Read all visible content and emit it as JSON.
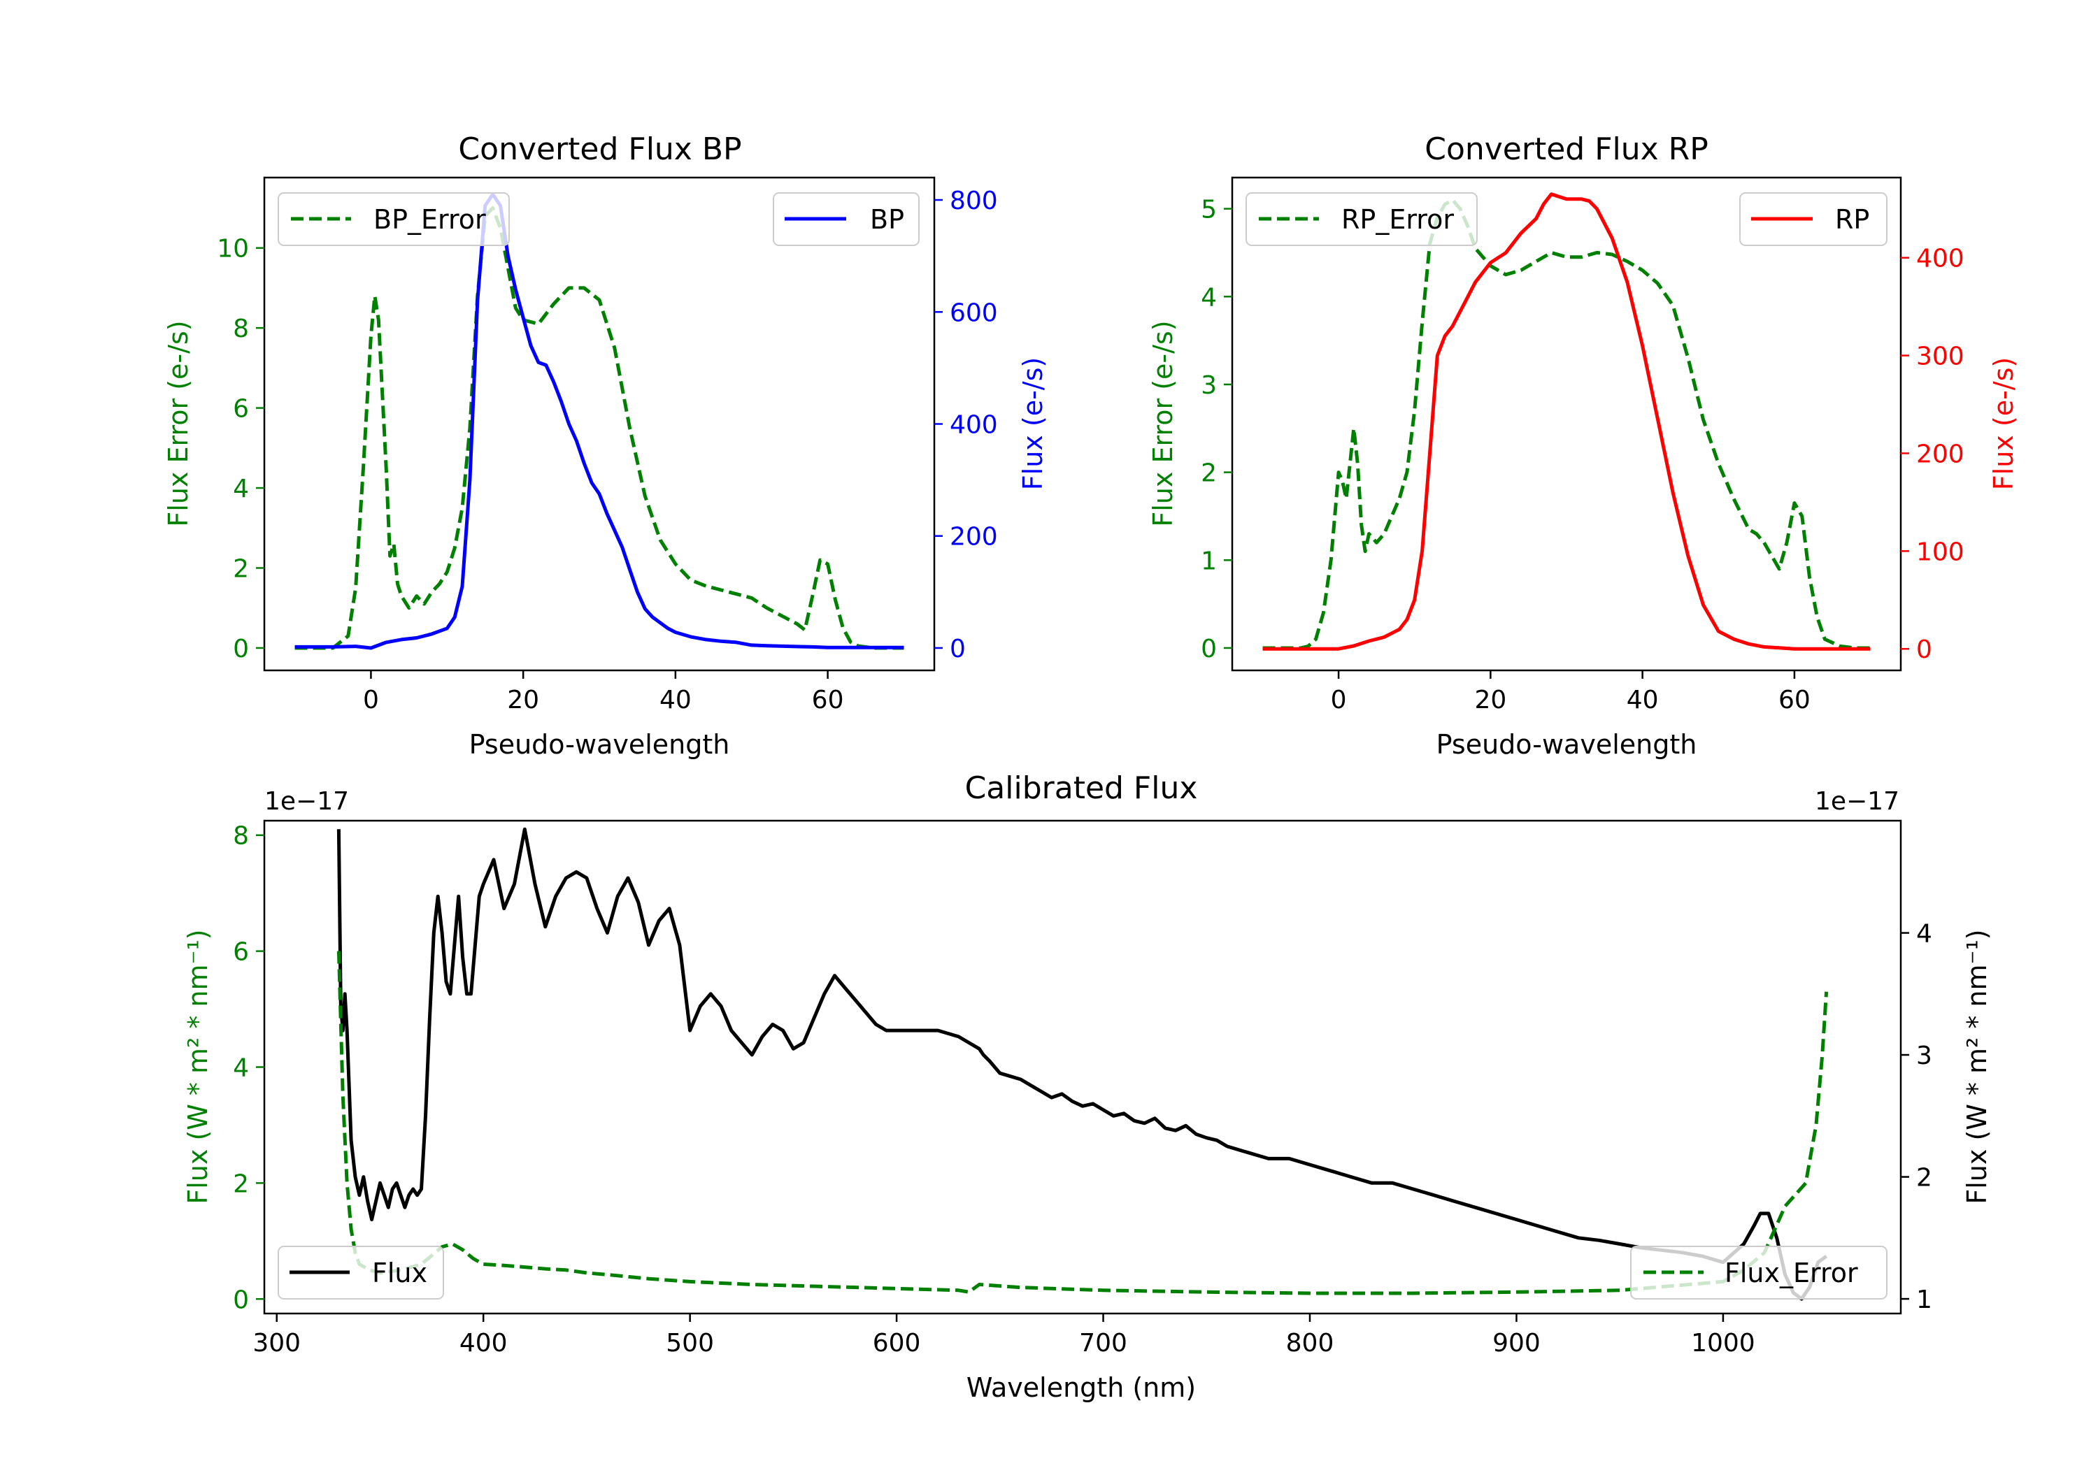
{
  "chart_data": [
    {
      "type": "line",
      "title": "Converted Flux BP",
      "xlabel": "Pseudo-wavelength",
      "xlim": [
        -14,
        74
      ],
      "xticks": [
        0,
        20,
        40,
        60
      ],
      "left_axis": {
        "label": "Flux Error (e-/s)",
        "color": "#008000",
        "ylim": [
          -0.56,
          11.76
        ],
        "ticks": [
          0,
          2,
          4,
          6,
          8,
          10
        ]
      },
      "right_axis": {
        "label": "Flux (e-/s)",
        "color": "#0000ff",
        "ylim": [
          -40,
          840
        ],
        "ticks": [
          0,
          200,
          400,
          600,
          800
        ]
      },
      "series": [
        {
          "name": "BP_Error",
          "axis": "left",
          "color": "#008000",
          "style": "dashed",
          "x": [
            -10,
            -5,
            -3,
            -2,
            -1,
            0,
            0.5,
            1,
            2,
            2.5,
            3,
            3.5,
            4,
            5,
            6,
            7,
            8,
            9,
            10,
            11,
            12,
            13,
            14,
            15,
            16,
            17,
            18,
            19,
            20,
            22,
            24,
            26,
            28,
            30,
            32,
            34,
            36,
            38,
            40,
            42,
            44,
            46,
            48,
            50,
            52,
            54,
            56,
            57,
            58,
            59,
            60,
            61,
            62,
            63,
            64,
            66,
            68,
            70
          ],
          "values": [
            0,
            0,
            0.3,
            1.5,
            4.5,
            7.8,
            8.8,
            8.2,
            4.5,
            2.3,
            2.6,
            1.6,
            1.3,
            1.0,
            1.3,
            1.1,
            1.4,
            1.6,
            1.9,
            2.5,
            3.5,
            5.5,
            8.8,
            10.8,
            11.0,
            10.5,
            9.5,
            8.5,
            8.2,
            8.1,
            8.6,
            9.0,
            9.0,
            8.7,
            7.5,
            5.5,
            3.8,
            2.7,
            2.1,
            1.7,
            1.55,
            1.45,
            1.35,
            1.25,
            1.0,
            0.8,
            0.6,
            0.45,
            1.3,
            2.2,
            2.1,
            1.2,
            0.5,
            0.15,
            0.05,
            0,
            0,
            0
          ]
        },
        {
          "name": "BP",
          "axis": "right",
          "color": "#0000ff",
          "style": "solid",
          "x": [
            -10,
            -5,
            -2,
            0,
            2,
            4,
            6,
            8,
            10,
            11,
            12,
            13,
            14,
            15,
            16,
            17,
            18,
            19,
            20,
            21,
            22,
            23,
            24,
            25,
            26,
            27,
            28,
            29,
            30,
            31,
            32,
            33,
            34,
            35,
            36,
            37,
            38,
            39,
            40,
            42,
            44,
            46,
            48,
            50,
            52,
            55,
            58,
            60,
            62,
            65,
            68,
            70
          ],
          "values": [
            2,
            2,
            3,
            0,
            10,
            15,
            18,
            25,
            35,
            55,
            110,
            300,
            620,
            790,
            810,
            790,
            700,
            640,
            590,
            540,
            510,
            505,
            475,
            440,
            400,
            370,
            330,
            295,
            275,
            240,
            210,
            180,
            140,
            100,
            70,
            55,
            45,
            35,
            28,
            20,
            15,
            12,
            10,
            5,
            4,
            3,
            2,
            1,
            1,
            1,
            1,
            1
          ]
        }
      ],
      "legends": [
        {
          "position": "upper left",
          "entries": [
            "BP_Error"
          ]
        },
        {
          "position": "upper right",
          "entries": [
            "BP"
          ]
        }
      ]
    },
    {
      "type": "line",
      "title": "Converted Flux RP",
      "xlabel": "Pseudo-wavelength",
      "xlim": [
        -14,
        74
      ],
      "xticks": [
        0,
        20,
        40,
        60
      ],
      "left_axis": {
        "label": "Flux Error (e-/s)",
        "color": "#008000",
        "ylim": [
          -0.255,
          5.355
        ],
        "ticks": [
          0,
          1,
          2,
          3,
          4,
          5
        ]
      },
      "right_axis": {
        "label": "Flux (e-/s)",
        "color": "#ff0000",
        "ylim": [
          -22,
          482
        ],
        "ticks": [
          0,
          100,
          200,
          300,
          400
        ]
      },
      "series": [
        {
          "name": "RP_Error",
          "axis": "left",
          "color": "#008000",
          "style": "dashed",
          "x": [
            -10,
            -5,
            -4,
            -3,
            -2,
            -1,
            0,
            0.5,
            1,
            1.5,
            2,
            2.5,
            3,
            3.5,
            4,
            5,
            6,
            7,
            8,
            9,
            10,
            11,
            12,
            13,
            14,
            15,
            16,
            17,
            18,
            20,
            22,
            24,
            26,
            28,
            30,
            32,
            34,
            36,
            38,
            40,
            42,
            44,
            46,
            48,
            50,
            52,
            54,
            55,
            56,
            57,
            58,
            59,
            60,
            61,
            62,
            63,
            64,
            66,
            68,
            70
          ],
          "values": [
            0,
            0,
            0.02,
            0.1,
            0.4,
            1.0,
            2.0,
            1.9,
            1.7,
            2.1,
            2.5,
            2.1,
            1.4,
            1.1,
            1.3,
            1.2,
            1.3,
            1.5,
            1.7,
            2.0,
            2.7,
            3.7,
            4.6,
            4.9,
            5.05,
            5.1,
            5.0,
            4.8,
            4.55,
            4.35,
            4.25,
            4.3,
            4.4,
            4.5,
            4.45,
            4.45,
            4.5,
            4.48,
            4.4,
            4.3,
            4.15,
            3.9,
            3.3,
            2.6,
            2.1,
            1.7,
            1.35,
            1.3,
            1.2,
            1.05,
            0.9,
            1.2,
            1.65,
            1.5,
            0.8,
            0.35,
            0.1,
            0.02,
            0,
            0
          ]
        },
        {
          "name": "RP",
          "axis": "right",
          "color": "#ff0000",
          "style": "solid",
          "x": [
            -10,
            -5,
            0,
            2,
            4,
            6,
            8,
            9,
            10,
            11,
            12,
            13,
            14,
            15,
            16,
            17,
            18,
            19,
            20,
            22,
            24,
            26,
            27,
            28,
            30,
            32,
            33,
            34,
            36,
            38,
            40,
            42,
            44,
            46,
            48,
            50,
            52,
            54,
            56,
            58,
            60,
            62,
            64,
            66,
            68,
            70
          ],
          "values": [
            0,
            0,
            0,
            3,
            8,
            12,
            20,
            30,
            50,
            100,
            200,
            300,
            320,
            330,
            345,
            360,
            375,
            385,
            395,
            405,
            425,
            440,
            455,
            465,
            460,
            460,
            458,
            450,
            420,
            375,
            310,
            235,
            160,
            95,
            45,
            18,
            10,
            5,
            2,
            1,
            0,
            0,
            0,
            0,
            0,
            0
          ]
        }
      ],
      "legends": [
        {
          "position": "upper left",
          "entries": [
            "RP_Error"
          ]
        },
        {
          "position": "upper right",
          "entries": [
            "RP"
          ]
        }
      ]
    },
    {
      "type": "line",
      "title": "Calibrated Flux",
      "xlabel": "Wavelength (nm)",
      "xlim": [
        294,
        1086
      ],
      "xticks": [
        300,
        400,
        500,
        600,
        700,
        800,
        900,
        1000
      ],
      "left_axis": {
        "label": "Flux (W * m² * nm⁻¹)",
        "color": "#008000",
        "offset_label": "1e−17",
        "ylim": [
          -0.25,
          8.25
        ],
        "ticks": [
          0,
          2,
          4,
          6,
          8
        ]
      },
      "right_axis": {
        "label": "Flux (W * m² * nm⁻¹)",
        "color": "#000000",
        "offset_label": "1e−17",
        "ylim": [
          0.88,
          4.92
        ],
        "ticks": [
          1,
          2,
          3,
          4
        ]
      },
      "series": [
        {
          "name": "Flux",
          "axis": "right",
          "color": "#000000",
          "style": "solid",
          "x": [
            330,
            331,
            332,
            333,
            334,
            336,
            338,
            340,
            342,
            344,
            346,
            348,
            350,
            352,
            354,
            356,
            358,
            360,
            362,
            364,
            366,
            368,
            370,
            372,
            374,
            376,
            378,
            380,
            382,
            384,
            386,
            388,
            390,
            392,
            394,
            396,
            398,
            400,
            405,
            410,
            415,
            420,
            425,
            430,
            435,
            440,
            445,
            450,
            455,
            460,
            465,
            470,
            475,
            480,
            485,
            490,
            495,
            500,
            505,
            510,
            515,
            520,
            525,
            530,
            535,
            540,
            545,
            550,
            555,
            560,
            565,
            570,
            575,
            580,
            585,
            590,
            595,
            600,
            610,
            620,
            630,
            635,
            640,
            642,
            645,
            650,
            660,
            665,
            670,
            675,
            680,
            685,
            690,
            695,
            700,
            705,
            710,
            715,
            720,
            725,
            730,
            735,
            740,
            745,
            750,
            755,
            760,
            770,
            780,
            790,
            800,
            810,
            820,
            830,
            840,
            850,
            860,
            870,
            880,
            890,
            900,
            910,
            920,
            930,
            940,
            950,
            960,
            970,
            980,
            990,
            1000,
            1010,
            1015,
            1018,
            1022,
            1026,
            1030,
            1034,
            1038,
            1042,
            1046,
            1050
          ],
          "values": [
            4.85,
            3.4,
            3.2,
            3.5,
            3.2,
            2.3,
            2.0,
            1.85,
            2.0,
            1.8,
            1.65,
            1.8,
            1.95,
            1.85,
            1.75,
            1.9,
            1.95,
            1.85,
            1.75,
            1.85,
            1.9,
            1.85,
            1.9,
            2.5,
            3.3,
            4.0,
            4.3,
            4.0,
            3.6,
            3.5,
            3.9,
            4.3,
            3.8,
            3.5,
            3.5,
            3.9,
            4.3,
            4.4,
            4.6,
            4.2,
            4.4,
            4.85,
            4.4,
            4.05,
            4.3,
            4.45,
            4.5,
            4.45,
            4.2,
            4.0,
            4.3,
            4.45,
            4.25,
            3.9,
            4.1,
            4.2,
            3.9,
            3.2,
            3.4,
            3.5,
            3.4,
            3.2,
            3.1,
            3.0,
            3.15,
            3.25,
            3.2,
            3.05,
            3.1,
            3.3,
            3.5,
            3.65,
            3.55,
            3.45,
            3.35,
            3.25,
            3.2,
            3.2,
            3.2,
            3.2,
            3.15,
            3.1,
            3.05,
            3.0,
            2.95,
            2.85,
            2.8,
            2.75,
            2.7,
            2.65,
            2.68,
            2.62,
            2.58,
            2.6,
            2.55,
            2.5,
            2.52,
            2.46,
            2.44,
            2.48,
            2.4,
            2.38,
            2.42,
            2.35,
            2.32,
            2.3,
            2.25,
            2.2,
            2.15,
            2.15,
            2.1,
            2.05,
            2.0,
            1.95,
            1.95,
            1.9,
            1.85,
            1.8,
            1.75,
            1.7,
            1.65,
            1.6,
            1.55,
            1.5,
            1.48,
            1.45,
            1.42,
            1.4,
            1.38,
            1.35,
            1.3,
            1.45,
            1.6,
            1.7,
            1.7,
            1.5,
            1.2,
            1.05,
            1.0,
            1.1,
            1.3,
            1.35
          ]
        },
        {
          "name": "Flux_Error",
          "axis": "left",
          "color": "#008000",
          "style": "dashed",
          "x": [
            330,
            332,
            334,
            336,
            338,
            340,
            345,
            350,
            360,
            370,
            375,
            380,
            385,
            390,
            395,
            400,
            410,
            420,
            430,
            440,
            450,
            460,
            480,
            500,
            530,
            560,
            600,
            630,
            635,
            640,
            660,
            700,
            750,
            800,
            850,
            900,
            950,
            1000,
            1010,
            1020,
            1025,
            1030,
            1035,
            1040,
            1045,
            1048,
            1050
          ],
          "values": [
            6.0,
            3.5,
            2.0,
            1.2,
            0.8,
            0.6,
            0.5,
            0.45,
            0.5,
            0.6,
            0.75,
            0.9,
            0.95,
            0.85,
            0.7,
            0.6,
            0.58,
            0.55,
            0.52,
            0.5,
            0.45,
            0.42,
            0.35,
            0.3,
            0.25,
            0.22,
            0.18,
            0.15,
            0.12,
            0.25,
            0.2,
            0.15,
            0.12,
            0.1,
            0.1,
            0.12,
            0.15,
            0.3,
            0.5,
            0.8,
            1.2,
            1.6,
            1.8,
            2.0,
            3.0,
            4.2,
            5.3
          ]
        }
      ],
      "legends": [
        {
          "position": "lower left",
          "entries": [
            "Flux"
          ]
        },
        {
          "position": "lower right",
          "entries": [
            "Flux_Error"
          ]
        }
      ]
    }
  ]
}
